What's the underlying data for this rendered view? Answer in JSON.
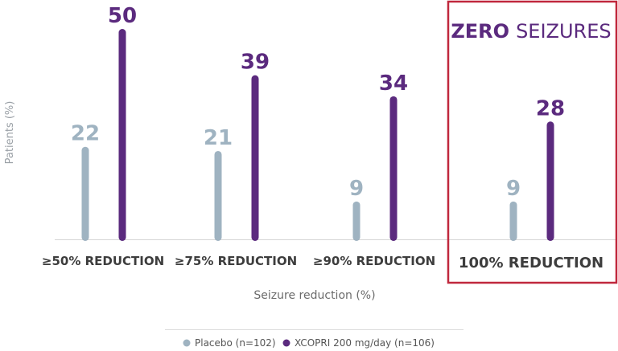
{
  "chart_data": {
    "type": "bar",
    "title": "",
    "xlabel": "Seizure reduction (%)",
    "ylabel": "Patients (%)",
    "ylim": [
      0,
      50
    ],
    "grid": false,
    "legend_position": "bottom",
    "categories": [
      "≥50% REDUCTION",
      "≥75% REDUCTION",
      "≥90% REDUCTION",
      "100% REDUCTION"
    ],
    "series": [
      {
        "name": "Placebo (n=102)",
        "color": "#9fb3c1",
        "values": [
          22,
          21,
          9,
          9
        ]
      },
      {
        "name": "XCOPRI 200 mg/day (n=106)",
        "color": "#5b2a7e",
        "values": [
          50,
          39,
          34,
          28
        ]
      }
    ],
    "highlight": {
      "category_index": 3,
      "label_bold": "ZERO",
      "label_rest": "SEIZURES",
      "border_color": "#c0283d"
    }
  }
}
